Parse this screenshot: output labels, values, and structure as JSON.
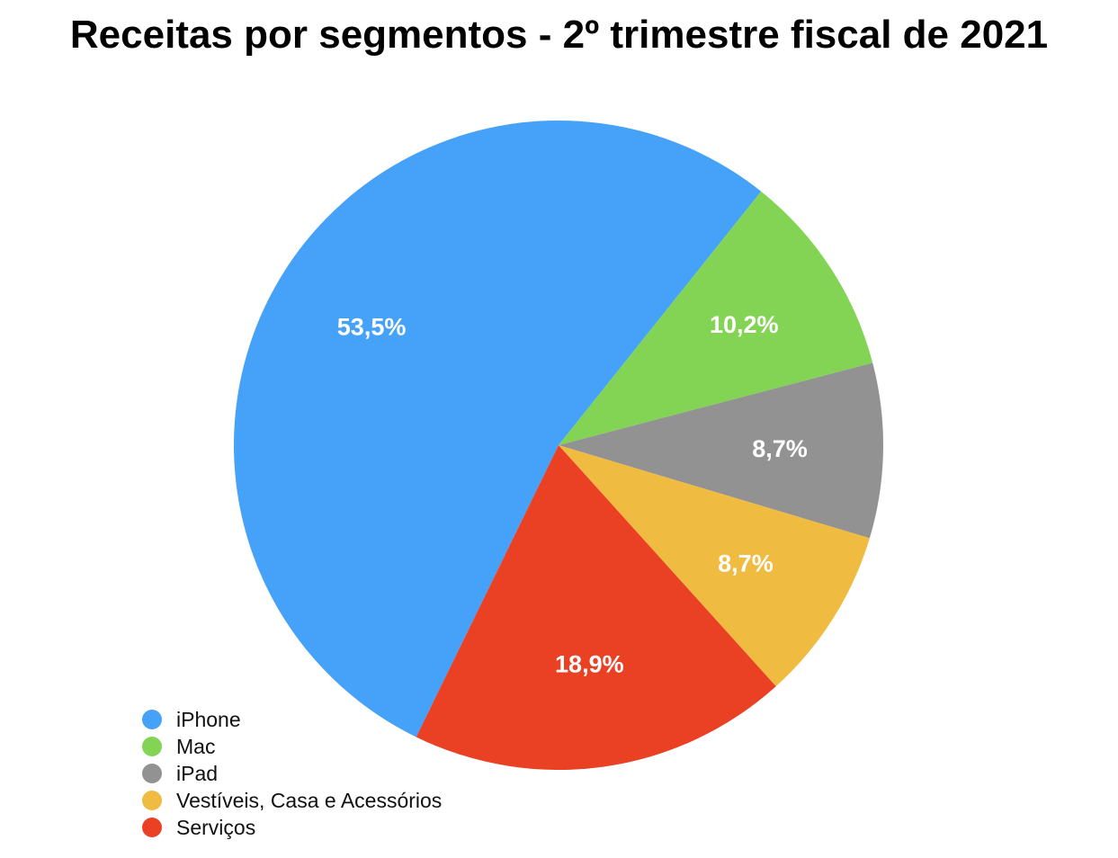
{
  "chart_data": {
    "type": "pie",
    "title": "Receitas por segmentos - 2º trimestre fiscal de 2021",
    "categories": [
      "iPhone",
      "Mac",
      "iPad",
      "Vestíveis, Casa e Acessórios",
      "Serviços"
    ],
    "values": [
      53.5,
      10.2,
      8.7,
      8.7,
      18.9
    ],
    "value_labels": [
      "53,5%",
      "10,2%",
      "8,7%",
      "8,7%",
      "18,9%"
    ],
    "colors": [
      "#46a1f8",
      "#83d454",
      "#929292",
      "#f0bb41",
      "#ea4125"
    ],
    "legend_position": "bottom-left",
    "start_angle_deg": 206,
    "direction": "clockwise"
  }
}
